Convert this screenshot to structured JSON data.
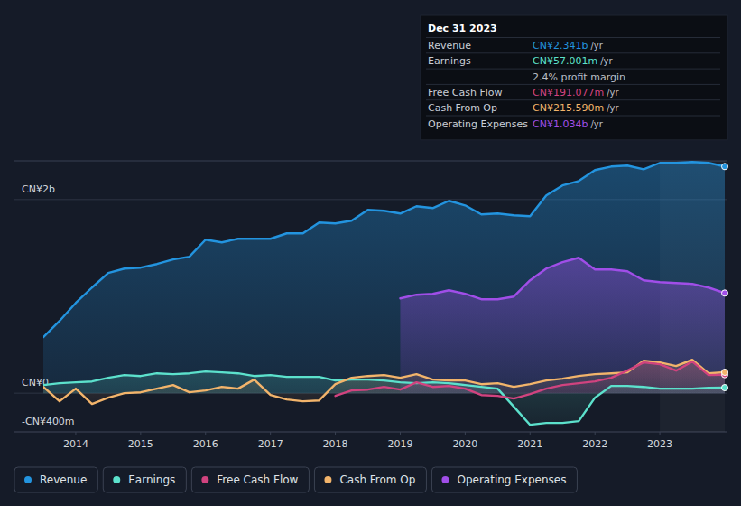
{
  "chart_data": {
    "type": "line",
    "x": [
      2013.5,
      2013.75,
      2014.0,
      2014.25,
      2014.5,
      2014.75,
      2015.0,
      2015.25,
      2015.5,
      2015.75,
      2016.0,
      2016.25,
      2016.5,
      2016.75,
      2017.0,
      2017.25,
      2017.5,
      2017.75,
      2018.0,
      2018.25,
      2018.5,
      2018.75,
      2019.0,
      2019.25,
      2019.5,
      2019.75,
      2020.0,
      2020.25,
      2020.5,
      2020.75,
      2021.0,
      2021.25,
      2021.5,
      2021.75,
      2022.0,
      2022.25,
      2022.5,
      2022.75,
      2023.0,
      2023.25,
      2023.5,
      2023.75,
      2024.0
    ],
    "series": [
      {
        "name": "Revenue",
        "color": "#2394df",
        "values": [
          578,
          746,
          933,
          1091,
          1241,
          1287,
          1297,
          1334,
          1381,
          1409,
          1586,
          1558,
          1595,
          1595,
          1595,
          1651,
          1651,
          1763,
          1754,
          1782,
          1894,
          1884,
          1856,
          1931,
          1912,
          1987,
          1940,
          1847,
          1856,
          1838,
          1828,
          2043,
          2146,
          2192,
          2304,
          2341,
          2351,
          2313,
          2379,
          2379,
          2388,
          2379,
          2341
        ]
      },
      {
        "name": "Earnings",
        "color": "#5ce1cc",
        "values": [
          84,
          103,
          112,
          121,
          159,
          187,
          177,
          205,
          196,
          205,
          224,
          215,
          205,
          177,
          187,
          168,
          168,
          168,
          131,
          140,
          140,
          131,
          112,
          103,
          112,
          103,
          84,
          65,
          47,
          -140,
          -327,
          -308,
          -308,
          -289,
          -47,
          75,
          75,
          65,
          47,
          47,
          47,
          56,
          57
        ]
      },
      {
        "name": "Free Cash Flow",
        "color": "#d1437f",
        "values": [
          null,
          null,
          null,
          null,
          null,
          null,
          null,
          null,
          null,
          null,
          null,
          null,
          null,
          null,
          null,
          null,
          null,
          null,
          -28,
          28,
          37,
          65,
          37,
          112,
          65,
          75,
          47,
          -19,
          -28,
          -56,
          -9,
          47,
          84,
          103,
          121,
          159,
          233,
          317,
          299,
          233,
          327,
          187,
          191
        ]
      },
      {
        "name": "Cash From Op",
        "color": "#f2b46b",
        "values": [
          65,
          -84,
          47,
          -112,
          -47,
          0,
          9,
          47,
          84,
          9,
          28,
          65,
          47,
          140,
          -19,
          -65,
          -84,
          -75,
          93,
          159,
          177,
          187,
          159,
          196,
          140,
          131,
          131,
          93,
          103,
          65,
          93,
          131,
          149,
          177,
          196,
          205,
          215,
          336,
          317,
          280,
          345,
          205,
          216
        ]
      },
      {
        "name": "Operating Expenses",
        "color": "#a04ee8",
        "values": [
          null,
          null,
          null,
          null,
          null,
          null,
          null,
          null,
          null,
          null,
          null,
          null,
          null,
          null,
          null,
          null,
          null,
          null,
          null,
          null,
          null,
          null,
          979,
          1017,
          1026,
          1063,
          1026,
          970,
          970,
          998,
          1166,
          1287,
          1353,
          1399,
          1278,
          1278,
          1259,
          1166,
          1147,
          1138,
          1129,
          1091,
          1034
        ]
      }
    ],
    "xlim": [
      2013.5,
      2024
    ],
    "xticks": [
      2014,
      2015,
      2016,
      2017,
      2018,
      2019,
      2020,
      2021,
      2022,
      2023
    ],
    "ylim": [
      -400,
      2400
    ],
    "yticks": [
      {
        "value": -400,
        "label": "-CN¥400m"
      },
      {
        "value": 0,
        "label": "CN¥0"
      },
      {
        "value": 2000,
        "label": "CN¥2b"
      }
    ],
    "grid": true,
    "legend": "bottom",
    "annotation": {
      "title": "Dec 31 2023",
      "rows": [
        {
          "label": "Revenue",
          "value": "CN¥2.341b",
          "unit": "/yr"
        },
        {
          "label": "Earnings",
          "value": "CN¥57.001m",
          "unit": "/yr"
        },
        {
          "value": "2.4% profit margin"
        },
        {
          "label": "Free Cash Flow",
          "value": "CN¥191.077m",
          "unit": "/yr"
        },
        {
          "label": "Cash From Op",
          "value": "CN¥215.590m",
          "unit": "/yr"
        },
        {
          "label": "Operating Expenses",
          "value": "CN¥1.034b",
          "unit": "/yr"
        }
      ]
    }
  }
}
